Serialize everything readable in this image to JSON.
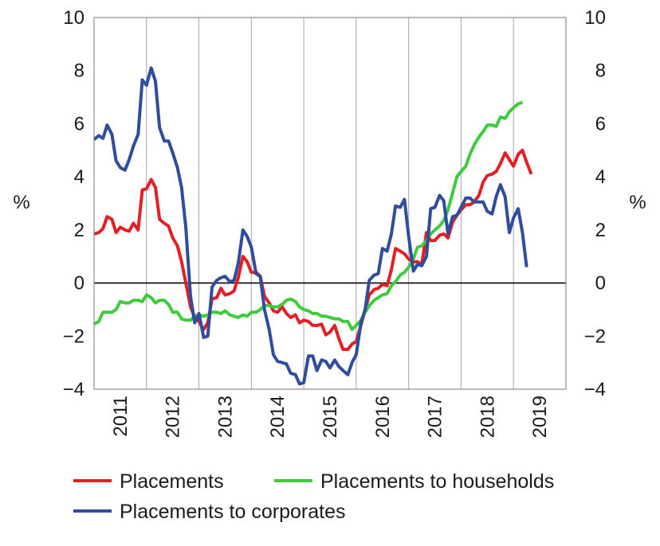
{
  "chart_data": {
    "type": "line",
    "title": "",
    "xlabel": "",
    "ylabel_left": "%",
    "ylabel_right": "%",
    "ylim": [
      -4,
      10
    ],
    "yticks": [
      -4,
      -2,
      0,
      2,
      4,
      6,
      8,
      10
    ],
    "ytick_labels": [
      "−4",
      "−2",
      "0",
      "2",
      "4",
      "6",
      "8",
      "10"
    ],
    "xlim": [
      2010.58,
      2019.58
    ],
    "xtick_labels": [
      "2011",
      "2012",
      "2013",
      "2014",
      "2015",
      "2016",
      "2017",
      "2018",
      "2019"
    ],
    "grid": "vertical",
    "zero_line": true,
    "legend_position": "bottom",
    "series": [
      {
        "name": "Placements",
        "color": "#e31f26",
        "points": [
          [
            2010.58,
            1.85
          ],
          [
            2010.67,
            1.9
          ],
          [
            2010.75,
            2.05
          ],
          [
            2010.83,
            2.5
          ],
          [
            2010.92,
            2.4
          ],
          [
            2011.0,
            1.9
          ],
          [
            2011.08,
            2.1
          ],
          [
            2011.17,
            2.0
          ],
          [
            2011.25,
            1.95
          ],
          [
            2011.33,
            2.25
          ],
          [
            2011.42,
            2.0
          ],
          [
            2011.5,
            3.5
          ],
          [
            2011.58,
            3.55
          ],
          [
            2011.67,
            3.9
          ],
          [
            2011.75,
            3.6
          ],
          [
            2011.83,
            2.4
          ],
          [
            2011.92,
            2.25
          ],
          [
            2012.0,
            2.15
          ],
          [
            2012.08,
            1.7
          ],
          [
            2012.17,
            1.4
          ],
          [
            2012.25,
            0.8
          ],
          [
            2012.33,
            0.0
          ],
          [
            2012.42,
            -0.9
          ],
          [
            2012.5,
            -1.3
          ],
          [
            2012.58,
            -1.45
          ],
          [
            2012.67,
            -1.75
          ],
          [
            2012.75,
            -1.5
          ],
          [
            2012.83,
            -0.6
          ],
          [
            2012.92,
            -0.55
          ],
          [
            2013.0,
            -0.2
          ],
          [
            2013.08,
            -0.45
          ],
          [
            2013.17,
            -0.4
          ],
          [
            2013.25,
            -0.3
          ],
          [
            2013.33,
            0.2
          ],
          [
            2013.42,
            1.0
          ],
          [
            2013.5,
            0.8
          ],
          [
            2013.58,
            0.4
          ],
          [
            2013.67,
            0.4
          ],
          [
            2013.75,
            0.25
          ],
          [
            2013.83,
            -0.5
          ],
          [
            2013.92,
            -0.75
          ],
          [
            2014.0,
            -1.05
          ],
          [
            2014.08,
            -1.1
          ],
          [
            2014.17,
            -0.9
          ],
          [
            2014.25,
            -1.15
          ],
          [
            2014.33,
            -1.3
          ],
          [
            2014.42,
            -1.2
          ],
          [
            2014.5,
            -1.5
          ],
          [
            2014.58,
            -1.4
          ],
          [
            2014.67,
            -1.45
          ],
          [
            2014.75,
            -1.6
          ],
          [
            2014.83,
            -1.6
          ],
          [
            2014.92,
            -1.55
          ],
          [
            2015.0,
            -1.95
          ],
          [
            2015.08,
            -1.85
          ],
          [
            2015.17,
            -1.6
          ],
          [
            2015.25,
            -2.1
          ],
          [
            2015.33,
            -2.5
          ],
          [
            2015.42,
            -2.5
          ],
          [
            2015.5,
            -2.3
          ],
          [
            2015.58,
            -2.2
          ],
          [
            2015.67,
            -1.6
          ],
          [
            2015.75,
            -1.0
          ],
          [
            2015.83,
            -0.45
          ],
          [
            2015.92,
            -0.25
          ],
          [
            2016.0,
            -0.2
          ],
          [
            2016.08,
            -0.05
          ],
          [
            2016.17,
            -0.1
          ],
          [
            2016.25,
            0.5
          ],
          [
            2016.33,
            1.3
          ],
          [
            2016.42,
            1.2
          ],
          [
            2016.5,
            1.1
          ],
          [
            2016.58,
            0.9
          ],
          [
            2016.67,
            0.8
          ],
          [
            2016.75,
            0.8
          ],
          [
            2016.83,
            0.7
          ],
          [
            2016.92,
            1.9
          ],
          [
            2017.0,
            1.6
          ],
          [
            2017.08,
            1.6
          ],
          [
            2017.17,
            1.8
          ],
          [
            2017.25,
            1.85
          ],
          [
            2017.33,
            1.7
          ],
          [
            2017.42,
            2.3
          ],
          [
            2017.5,
            2.55
          ],
          [
            2017.58,
            2.75
          ],
          [
            2017.67,
            2.95
          ],
          [
            2017.75,
            2.95
          ],
          [
            2017.83,
            3.05
          ],
          [
            2017.92,
            3.3
          ],
          [
            2018.0,
            3.8
          ],
          [
            2018.08,
            4.05
          ],
          [
            2018.17,
            4.1
          ],
          [
            2018.25,
            4.2
          ],
          [
            2018.33,
            4.5
          ],
          [
            2018.42,
            4.9
          ],
          [
            2018.5,
            4.65
          ],
          [
            2018.58,
            4.4
          ],
          [
            2018.67,
            4.85
          ],
          [
            2018.75,
            5.0
          ],
          [
            2018.83,
            4.55
          ],
          [
            2018.92,
            4.1
          ]
        ]
      },
      {
        "name": "Placements to households",
        "color": "#3ecb3e",
        "points": [
          [
            2010.58,
            -1.55
          ],
          [
            2010.67,
            -1.45
          ],
          [
            2010.75,
            -1.1
          ],
          [
            2010.83,
            -1.1
          ],
          [
            2010.92,
            -1.1
          ],
          [
            2011.0,
            -1.0
          ],
          [
            2011.08,
            -0.7
          ],
          [
            2011.17,
            -0.75
          ],
          [
            2011.25,
            -0.75
          ],
          [
            2011.33,
            -0.65
          ],
          [
            2011.42,
            -0.65
          ],
          [
            2011.5,
            -0.7
          ],
          [
            2011.58,
            -0.45
          ],
          [
            2011.67,
            -0.55
          ],
          [
            2011.75,
            -0.75
          ],
          [
            2011.83,
            -0.65
          ],
          [
            2011.92,
            -0.65
          ],
          [
            2012.0,
            -0.8
          ],
          [
            2012.08,
            -1.1
          ],
          [
            2012.17,
            -1.1
          ],
          [
            2012.25,
            -1.35
          ],
          [
            2012.33,
            -1.4
          ],
          [
            2012.42,
            -1.4
          ],
          [
            2012.5,
            -1.25
          ],
          [
            2012.58,
            -1.2
          ],
          [
            2012.67,
            -1.25
          ],
          [
            2012.75,
            -1.2
          ],
          [
            2012.83,
            -1.1
          ],
          [
            2012.92,
            -1.1
          ],
          [
            2013.0,
            -1.15
          ],
          [
            2013.08,
            -1.05
          ],
          [
            2013.17,
            -1.2
          ],
          [
            2013.25,
            -1.25
          ],
          [
            2013.33,
            -1.3
          ],
          [
            2013.42,
            -1.2
          ],
          [
            2013.5,
            -1.25
          ],
          [
            2013.58,
            -1.1
          ],
          [
            2013.67,
            -1.1
          ],
          [
            2013.75,
            -1.0
          ],
          [
            2013.83,
            -0.85
          ],
          [
            2013.92,
            -0.85
          ],
          [
            2014.0,
            -0.9
          ],
          [
            2014.08,
            -0.9
          ],
          [
            2014.17,
            -0.8
          ],
          [
            2014.25,
            -0.65
          ],
          [
            2014.33,
            -0.6
          ],
          [
            2014.42,
            -0.7
          ],
          [
            2014.5,
            -0.9
          ],
          [
            2014.58,
            -1.0
          ],
          [
            2014.67,
            -1.05
          ],
          [
            2014.75,
            -1.15
          ],
          [
            2014.83,
            -1.15
          ],
          [
            2014.92,
            -1.25
          ],
          [
            2015.0,
            -1.25
          ],
          [
            2015.08,
            -1.3
          ],
          [
            2015.17,
            -1.35
          ],
          [
            2015.25,
            -1.35
          ],
          [
            2015.33,
            -1.45
          ],
          [
            2015.42,
            -1.45
          ],
          [
            2015.5,
            -1.75
          ],
          [
            2015.58,
            -1.6
          ],
          [
            2015.67,
            -1.4
          ],
          [
            2015.75,
            -1.1
          ],
          [
            2015.83,
            -0.85
          ],
          [
            2015.92,
            -0.65
          ],
          [
            2016.0,
            -0.55
          ],
          [
            2016.08,
            -0.45
          ],
          [
            2016.17,
            -0.4
          ],
          [
            2016.25,
            -0.1
          ],
          [
            2016.33,
            0.05
          ],
          [
            2016.42,
            0.3
          ],
          [
            2016.5,
            0.4
          ],
          [
            2016.58,
            0.6
          ],
          [
            2016.67,
            0.9
          ],
          [
            2016.75,
            1.35
          ],
          [
            2016.83,
            1.4
          ],
          [
            2016.92,
            1.6
          ],
          [
            2017.0,
            1.85
          ],
          [
            2017.08,
            2.0
          ],
          [
            2017.17,
            2.15
          ],
          [
            2017.25,
            2.35
          ],
          [
            2017.33,
            2.75
          ],
          [
            2017.42,
            3.4
          ],
          [
            2017.5,
            4.0
          ],
          [
            2017.58,
            4.2
          ],
          [
            2017.67,
            4.4
          ],
          [
            2017.75,
            4.85
          ],
          [
            2017.83,
            5.2
          ],
          [
            2017.92,
            5.5
          ],
          [
            2018.0,
            5.7
          ],
          [
            2018.08,
            5.95
          ],
          [
            2018.17,
            5.95
          ],
          [
            2018.25,
            5.9
          ],
          [
            2018.33,
            6.25
          ],
          [
            2018.42,
            6.2
          ],
          [
            2018.5,
            6.45
          ],
          [
            2018.58,
            6.6
          ],
          [
            2018.67,
            6.75
          ],
          [
            2018.75,
            6.8
          ]
        ]
      },
      {
        "name": "Placements to corporates",
        "color": "#2f4d9c",
        "points": [
          [
            2010.58,
            5.4
          ],
          [
            2010.67,
            5.55
          ],
          [
            2010.75,
            5.45
          ],
          [
            2010.83,
            5.95
          ],
          [
            2010.92,
            5.6
          ],
          [
            2011.0,
            4.6
          ],
          [
            2011.08,
            4.35
          ],
          [
            2011.17,
            4.25
          ],
          [
            2011.25,
            4.65
          ],
          [
            2011.33,
            5.15
          ],
          [
            2011.42,
            5.6
          ],
          [
            2011.5,
            7.65
          ],
          [
            2011.58,
            7.45
          ],
          [
            2011.67,
            8.1
          ],
          [
            2011.75,
            7.6
          ],
          [
            2011.83,
            5.85
          ],
          [
            2011.92,
            5.35
          ],
          [
            2012.0,
            5.35
          ],
          [
            2012.08,
            4.9
          ],
          [
            2012.17,
            4.35
          ],
          [
            2012.25,
            3.6
          ],
          [
            2012.33,
            2.1
          ],
          [
            2012.42,
            -0.5
          ],
          [
            2012.5,
            -1.5
          ],
          [
            2012.58,
            -1.15
          ],
          [
            2012.67,
            -2.05
          ],
          [
            2012.75,
            -2.0
          ],
          [
            2012.83,
            -0.15
          ],
          [
            2012.92,
            0.1
          ],
          [
            2013.0,
            0.2
          ],
          [
            2013.08,
            0.25
          ],
          [
            2013.17,
            0.05
          ],
          [
            2013.25,
            0.1
          ],
          [
            2013.33,
            0.75
          ],
          [
            2013.42,
            2.0
          ],
          [
            2013.5,
            1.75
          ],
          [
            2013.58,
            1.35
          ],
          [
            2013.67,
            0.35
          ],
          [
            2013.75,
            0.25
          ],
          [
            2013.83,
            -1.0
          ],
          [
            2013.92,
            -1.75
          ],
          [
            2014.0,
            -2.7
          ],
          [
            2014.08,
            -2.95
          ],
          [
            2014.17,
            -3.0
          ],
          [
            2014.25,
            -3.05
          ],
          [
            2014.33,
            -3.4
          ],
          [
            2014.42,
            -3.45
          ],
          [
            2014.5,
            -3.8
          ],
          [
            2014.58,
            -3.75
          ],
          [
            2014.67,
            -2.75
          ],
          [
            2014.75,
            -2.75
          ],
          [
            2014.83,
            -3.3
          ],
          [
            2014.92,
            -2.9
          ],
          [
            2015.0,
            -2.95
          ],
          [
            2015.08,
            -3.2
          ],
          [
            2015.17,
            -2.9
          ],
          [
            2015.25,
            -3.15
          ],
          [
            2015.33,
            -3.3
          ],
          [
            2015.42,
            -3.45
          ],
          [
            2015.5,
            -3.0
          ],
          [
            2015.58,
            -2.7
          ],
          [
            2015.67,
            -1.5
          ],
          [
            2015.75,
            -1.0
          ],
          [
            2015.83,
            0.1
          ],
          [
            2015.92,
            0.3
          ],
          [
            2016.0,
            0.35
          ],
          [
            2016.08,
            1.3
          ],
          [
            2016.17,
            1.2
          ],
          [
            2016.25,
            1.85
          ],
          [
            2016.33,
            2.9
          ],
          [
            2016.42,
            2.85
          ],
          [
            2016.5,
            3.15
          ],
          [
            2016.58,
            1.75
          ],
          [
            2016.67,
            0.45
          ],
          [
            2016.75,
            0.7
          ],
          [
            2016.83,
            0.65
          ],
          [
            2016.92,
            1.0
          ],
          [
            2017.0,
            2.8
          ],
          [
            2017.08,
            2.85
          ],
          [
            2017.17,
            3.3
          ],
          [
            2017.25,
            3.1
          ],
          [
            2017.33,
            1.85
          ],
          [
            2017.42,
            2.5
          ],
          [
            2017.5,
            2.55
          ],
          [
            2017.58,
            2.85
          ],
          [
            2017.67,
            3.2
          ],
          [
            2017.75,
            3.2
          ],
          [
            2017.83,
            3.05
          ],
          [
            2017.92,
            3.05
          ],
          [
            2018.0,
            3.05
          ],
          [
            2018.08,
            2.7
          ],
          [
            2018.17,
            2.6
          ],
          [
            2018.25,
            3.25
          ],
          [
            2018.33,
            3.7
          ],
          [
            2018.42,
            3.25
          ],
          [
            2018.5,
            1.9
          ],
          [
            2018.58,
            2.45
          ],
          [
            2018.67,
            2.8
          ],
          [
            2018.75,
            1.9
          ],
          [
            2018.83,
            0.6
          ]
        ]
      }
    ]
  }
}
